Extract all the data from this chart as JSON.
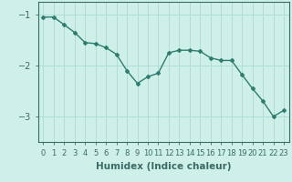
{
  "x": [
    0,
    1,
    2,
    3,
    4,
    5,
    6,
    7,
    8,
    9,
    10,
    11,
    12,
    13,
    14,
    15,
    16,
    17,
    18,
    19,
    20,
    21,
    22,
    23
  ],
  "y": [
    -1.05,
    -1.05,
    -1.2,
    -1.35,
    -1.55,
    -1.57,
    -1.65,
    -1.78,
    -2.1,
    -2.35,
    -2.22,
    -2.15,
    -1.75,
    -1.7,
    -1.7,
    -1.72,
    -1.85,
    -1.9,
    -1.9,
    -2.18,
    -2.45,
    -2.7,
    -3.0,
    -2.88
  ],
  "line_color": "#2e7d70",
  "marker": "D",
  "marker_size": 2.0,
  "bg_color": "#cef0e8",
  "grid_color": "#b0ddd6",
  "axis_color": "#3a6b66",
  "xlabel": "Humidex (Indice chaleur)",
  "xlim": [
    -0.5,
    23.5
  ],
  "ylim": [
    -3.5,
    -0.75
  ],
  "yticks": [
    -3,
    -2,
    -1
  ],
  "xtick_labels": [
    "0",
    "1",
    "2",
    "3",
    "4",
    "5",
    "6",
    "7",
    "8",
    "9",
    "10",
    "11",
    "12",
    "13",
    "14",
    "15",
    "16",
    "17",
    "18",
    "19",
    "20",
    "21",
    "22",
    "23"
  ],
  "linewidth": 1.0,
  "xlabel_fontsize": 7.5,
  "tick_fontsize": 6.0,
  "ytick_fontsize": 7.0
}
